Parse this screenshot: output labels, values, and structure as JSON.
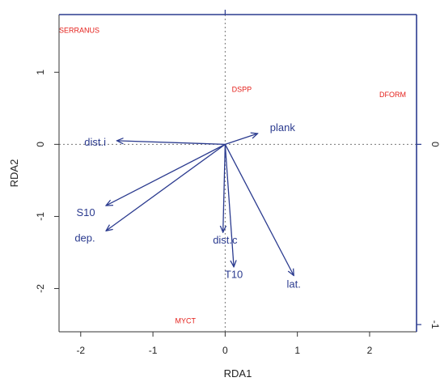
{
  "chart_data": {
    "type": "scatter",
    "subtype": "rda-biplot",
    "xlabel": "RDA1",
    "ylabel": "RDA2",
    "xlim": [
      -2.3,
      2.65
    ],
    "ylim": [
      -2.6,
      1.8
    ],
    "x_ticks": [
      -2,
      -1,
      0,
      1,
      2
    ],
    "y_ticks": [
      -2,
      -1,
      0,
      1
    ],
    "secondary_y_ticks": [
      {
        "label": "0",
        "value": 0
      },
      {
        "label": "-1",
        "value": -2.5
      }
    ],
    "secondary_top_ticks": [
      0
    ],
    "reference_lines": {
      "x": 0,
      "y": 0,
      "style": "dotted"
    },
    "species": [
      {
        "label": "SERRANUS",
        "x": -2.02,
        "y": 1.58
      },
      {
        "label": "DSPP",
        "x": 0.23,
        "y": 0.76
      },
      {
        "label": "DFORM",
        "x": 2.32,
        "y": 0.69
      },
      {
        "label": "MYCT",
        "x": -0.55,
        "y": -2.45
      }
    ],
    "vectors": [
      {
        "label": "plank",
        "x": 0.45,
        "y": 0.15,
        "label_x": 0.62,
        "label_y": 0.24
      },
      {
        "label": "dist.i",
        "x": -1.5,
        "y": 0.05,
        "label_x": -1.65,
        "label_y": 0.04
      },
      {
        "label": "S10",
        "x": -1.65,
        "y": -0.85,
        "label_x": -1.8,
        "label_y": -0.94
      },
      {
        "label": "dep.",
        "x": -1.65,
        "y": -1.2,
        "label_x": -1.8,
        "label_y": -1.29
      },
      {
        "label": "dist.c",
        "x": -0.03,
        "y": -1.22,
        "label_x": 0.0,
        "label_y": -1.32
      },
      {
        "label": "T10",
        "x": 0.12,
        "y": -1.7,
        "label_x": 0.12,
        "label_y": -1.8
      },
      {
        "label": "lat.",
        "x": 0.95,
        "y": -1.82,
        "label_x": 0.95,
        "label_y": -1.93
      }
    ],
    "colors": {
      "species": "#e4201b",
      "vectors": "#2b3b8f",
      "secondary_axis": "#2b3b8f",
      "frame": "#333333"
    }
  }
}
